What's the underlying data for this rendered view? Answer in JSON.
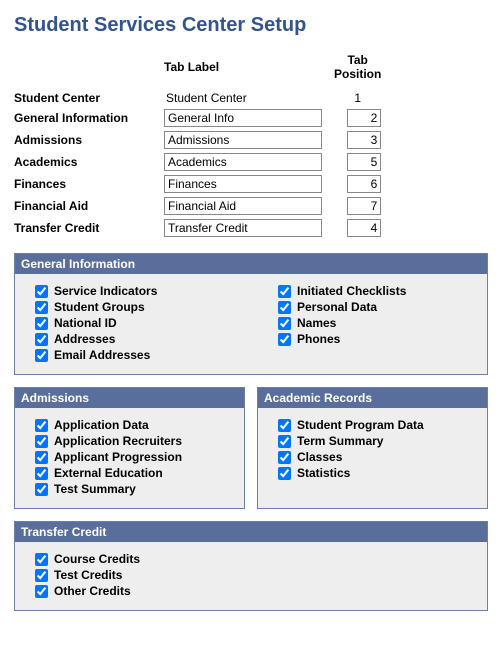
{
  "page_title": "Student Services Center Setup",
  "column_headers": {
    "rowlabel": "",
    "tab_label": "Tab Label",
    "tab_position": "Tab Position"
  },
  "tab_rows": [
    {
      "name": "Student Center",
      "label": "Student Center",
      "position": "1",
      "editable": false
    },
    {
      "name": "General Information",
      "label": "General Info",
      "position": "2",
      "editable": true
    },
    {
      "name": "Admissions",
      "label": "Admissions",
      "position": "3",
      "editable": true
    },
    {
      "name": "Academics",
      "label": "Academics",
      "position": "5",
      "editable": true
    },
    {
      "name": "Finances",
      "label": "Finances",
      "position": "6",
      "editable": true
    },
    {
      "name": "Financial Aid",
      "label": "Financial Aid",
      "position": "7",
      "editable": true
    },
    {
      "name": "Transfer Credit",
      "label": "Transfer Credit",
      "position": "4",
      "editable": true
    }
  ],
  "sections": {
    "general_info": {
      "title": "General Information",
      "col1": [
        {
          "label": "Service Indicators",
          "checked": true
        },
        {
          "label": "Student Groups",
          "checked": true
        },
        {
          "label": "National ID",
          "checked": true
        },
        {
          "label": "Addresses",
          "checked": true
        },
        {
          "label": "Email Addresses",
          "checked": true
        }
      ],
      "col2": [
        {
          "label": "Initiated Checklists",
          "checked": true
        },
        {
          "label": "Personal Data",
          "checked": true
        },
        {
          "label": "Names",
          "checked": true
        },
        {
          "label": "Phones",
          "checked": true
        }
      ]
    },
    "admissions": {
      "title": "Admissions",
      "items": [
        {
          "label": "Application Data",
          "checked": true
        },
        {
          "label": "Application Recruiters",
          "checked": true
        },
        {
          "label": "Applicant Progression",
          "checked": true
        },
        {
          "label": "External Education",
          "checked": true
        },
        {
          "label": "Test Summary",
          "checked": true
        }
      ]
    },
    "academic_records": {
      "title": "Academic Records",
      "items": [
        {
          "label": "Student Program Data",
          "checked": true
        },
        {
          "label": "Term Summary",
          "checked": true
        },
        {
          "label": "Classes",
          "checked": true
        },
        {
          "label": "Statistics",
          "checked": true
        }
      ]
    },
    "transfer_credit": {
      "title": "Transfer Credit",
      "items": [
        {
          "label": "Course Credits",
          "checked": true
        },
        {
          "label": "Test Credits",
          "checked": true
        },
        {
          "label": "Other Credits",
          "checked": true
        }
      ]
    }
  },
  "colors": {
    "title": "#33548e",
    "section_header_bg": "#5a6e9b",
    "section_body_bg": "#eeeeee",
    "section_border": "#6b7fa8"
  }
}
